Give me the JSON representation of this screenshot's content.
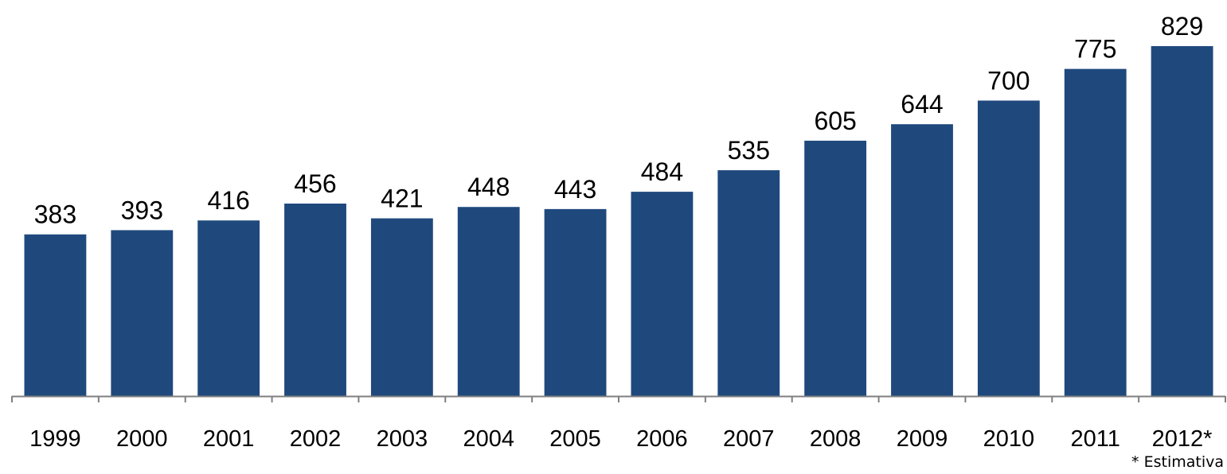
{
  "chart_data": {
    "type": "bar",
    "categories": [
      "1999",
      "2000",
      "2001",
      "2002",
      "2003",
      "2004",
      "2005",
      "2006",
      "2007",
      "2008",
      "2009",
      "2010",
      "2011",
      "2012*"
    ],
    "values": [
      383,
      393,
      416,
      456,
      421,
      448,
      443,
      484,
      535,
      605,
      644,
      700,
      775,
      829
    ],
    "title": "",
    "xlabel": "",
    "ylabel": "",
    "ylim": [
      0,
      829
    ],
    "grid": false,
    "data_labels": true,
    "bar_color": "#1F497D",
    "axis_color": "#7F7F7F",
    "footnote": "* Estimativa"
  }
}
